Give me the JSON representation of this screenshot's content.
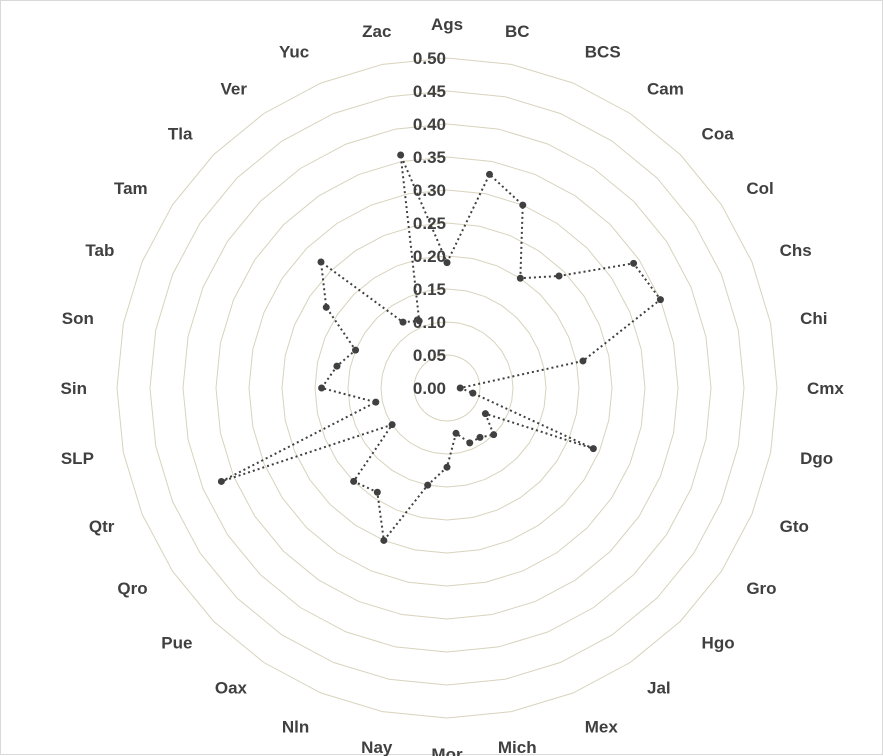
{
  "chart_data": {
    "type": "radar",
    "title": "",
    "categories": [
      "Ags",
      "BC",
      "BCS",
      "Cam",
      "Coa",
      "Col",
      "Chs",
      "Chi",
      "Cmx",
      "Dgo",
      "Gto",
      "Gro",
      "Hgo",
      "Jal",
      "Mex",
      "Mich",
      "Mor",
      "Nay",
      "Nln",
      "Oax",
      "Pue",
      "Qro",
      "Qtr",
      "SLP",
      "Sin",
      "Son",
      "Tab",
      "Tam",
      "Tla",
      "Ver",
      "Yuc",
      "Zac"
    ],
    "series": [
      {
        "values": [
          0.19,
          0.33,
          0.3,
          0.2,
          0.24,
          0.34,
          0.35,
          0.21,
          0.02,
          0.04,
          0.24,
          0.07,
          0.1,
          0.09,
          0.09,
          0.07,
          0.12,
          0.15,
          0.25,
          0.19,
          0.2,
          0.1,
          0.37,
          0.11,
          0.19,
          0.17,
          0.15,
          0.22,
          0.27,
          0.12,
          0.11,
          0.36
        ],
        "color": "#404040",
        "line_style": "dotted"
      }
    ],
    "rlim": [
      0.0,
      0.5
    ],
    "r_ticks": [
      "0.00",
      "0.05",
      "0.10",
      "0.15",
      "0.20",
      "0.25",
      "0.30",
      "0.35",
      "0.40",
      "0.45",
      "0.50"
    ],
    "grid": true,
    "legend": "none"
  }
}
